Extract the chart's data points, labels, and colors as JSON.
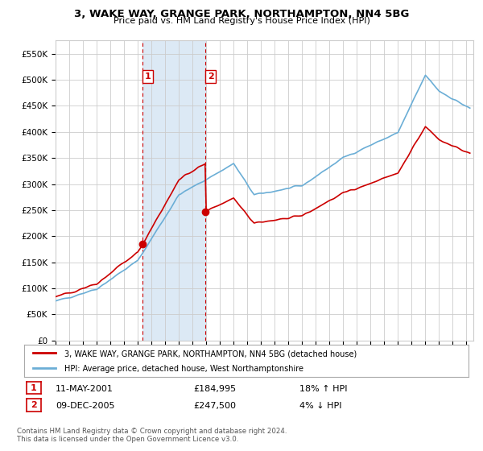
{
  "title": "3, WAKE WAY, GRANGE PARK, NORTHAMPTON, NN4 5BG",
  "subtitle": "Price paid vs. HM Land Registry's House Price Index (HPI)",
  "legend_line1": "3, WAKE WAY, GRANGE PARK, NORTHAMPTON, NN4 5BG (detached house)",
  "legend_line2": "HPI: Average price, detached house, West Northamptonshire",
  "table_row1": [
    "1",
    "11-MAY-2001",
    "£184,995",
    "18% ↑ HPI"
  ],
  "table_row2": [
    "2",
    "09-DEC-2005",
    "£247,500",
    "4% ↓ HPI"
  ],
  "footnote": "Contains HM Land Registry data © Crown copyright and database right 2024.\nThis data is licensed under the Open Government Licence v3.0.",
  "hpi_color": "#6baed6",
  "price_color": "#CC0000",
  "marker1_year": 2001.36,
  "marker2_year": 2005.94,
  "marker1_price": 184995,
  "marker2_price": 247500,
  "shade1_start": 2001.36,
  "shade1_end": 2005.94,
  "ylim": [
    0,
    575000
  ],
  "yticks": [
    0,
    50000,
    100000,
    150000,
    200000,
    250000,
    300000,
    350000,
    400000,
    450000,
    500000,
    550000
  ],
  "ytick_labels": [
    "£0",
    "£50K",
    "£100K",
    "£150K",
    "£200K",
    "£250K",
    "£300K",
    "£350K",
    "£400K",
    "£450K",
    "£500K",
    "£550K"
  ],
  "xlim_start": 1995.0,
  "xlim_end": 2025.5,
  "background_color": "#ffffff",
  "grid_color": "#cccccc",
  "shade_color": "#dce9f5"
}
